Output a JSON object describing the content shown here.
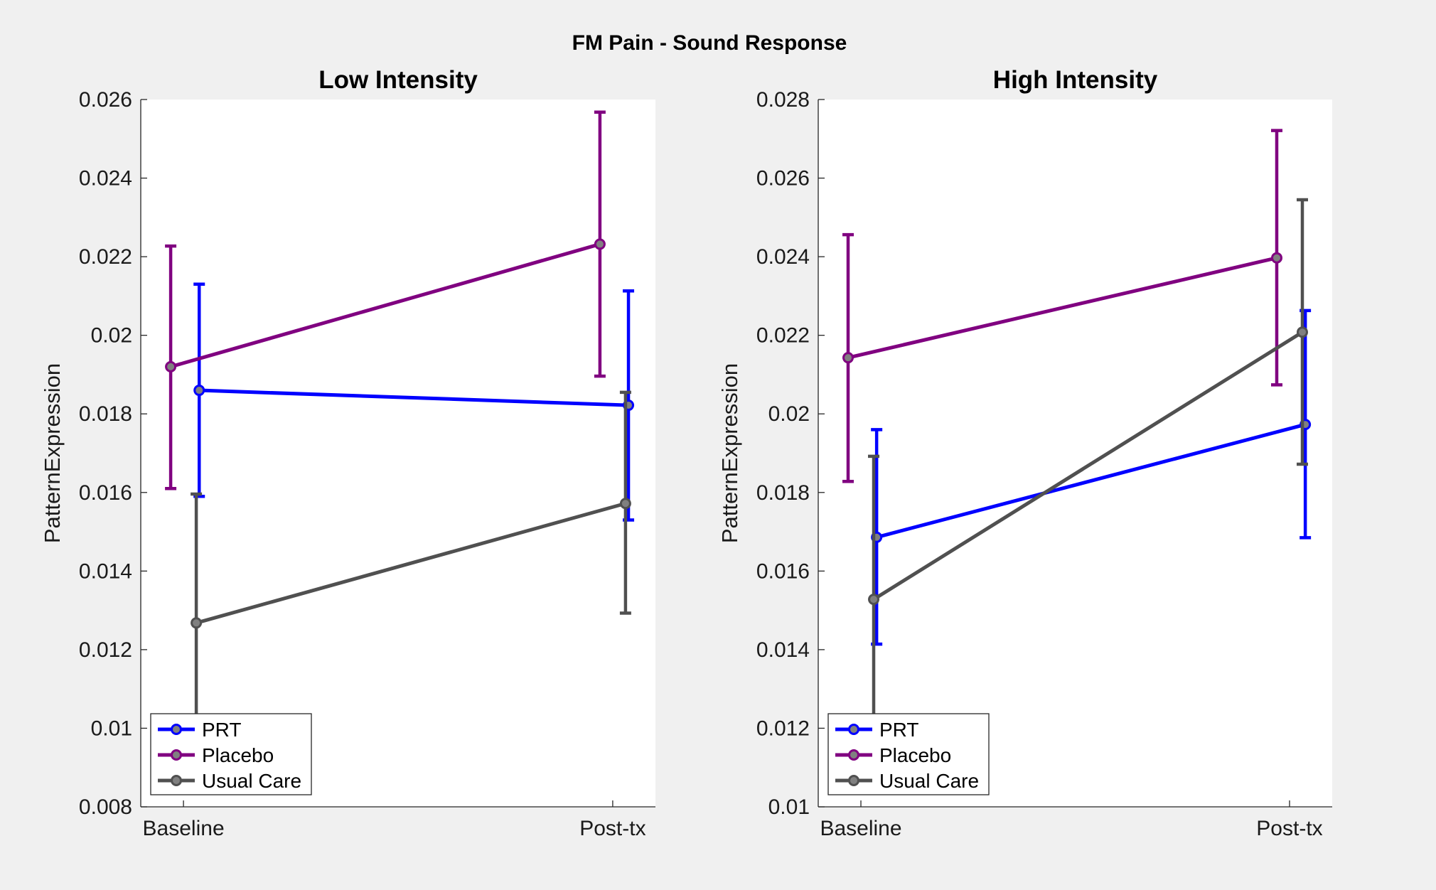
{
  "figure_title": "FM Pain - Sound Response",
  "chart_data": [
    {
      "type": "line",
      "title": "Low Intensity",
      "xlabel": "",
      "ylabel": "PatternExpression",
      "categories": [
        "Baseline",
        "Post-tx"
      ],
      "ylim": [
        0.008,
        0.026
      ],
      "yticks": [
        0.008,
        0.01,
        0.012,
        0.014,
        0.016,
        0.018,
        0.02,
        0.022,
        0.024,
        0.026
      ],
      "ytick_labels": [
        "0.008",
        "0.01",
        "0.012",
        "0.014",
        "0.016",
        "0.018",
        "0.02",
        "0.022",
        "0.024",
        "0.026"
      ],
      "grid": false,
      "legend_position": "bottom-left",
      "series": [
        {
          "name": "PRT",
          "color": "#0000ff",
          "values": [
            0.0186,
            0.01822
          ],
          "lower": [
            0.0159,
            0.0153
          ],
          "upper": [
            0.0213,
            0.02113
          ]
        },
        {
          "name": "Placebo",
          "color": "#800080",
          "values": [
            0.0192,
            0.02232
          ],
          "lower": [
            0.0161,
            0.01896
          ],
          "upper": [
            0.02227,
            0.02568
          ]
        },
        {
          "name": "Usual Care",
          "color": "#505050",
          "values": [
            0.01268,
            0.01572
          ],
          "lower": [
            0.00962,
            0.01293
          ],
          "upper": [
            0.01596,
            0.01855
          ]
        }
      ]
    },
    {
      "type": "line",
      "title": "High Intensity",
      "xlabel": "",
      "ylabel": "PatternExpression",
      "categories": [
        "Baseline",
        "Post-tx"
      ],
      "ylim": [
        0.01,
        0.028
      ],
      "yticks": [
        0.01,
        0.012,
        0.014,
        0.016,
        0.018,
        0.02,
        0.022,
        0.024,
        0.026,
        0.028
      ],
      "ytick_labels": [
        "0.01",
        "0.012",
        "0.014",
        "0.016",
        "0.018",
        "0.02",
        "0.022",
        "0.024",
        "0.026",
        "0.028"
      ],
      "grid": false,
      "legend_position": "bottom-left",
      "series": [
        {
          "name": "PRT",
          "color": "#0000ff",
          "values": [
            0.01686,
            0.01973
          ],
          "lower": [
            0.01414,
            0.01685
          ],
          "upper": [
            0.0196,
            0.02263
          ]
        },
        {
          "name": "Placebo",
          "color": "#800080",
          "values": [
            0.02143,
            0.02397
          ],
          "lower": [
            0.01828,
            0.02074
          ],
          "upper": [
            0.02456,
            0.02721
          ]
        },
        {
          "name": "Usual Care",
          "color": "#505050",
          "values": [
            0.01528,
            0.02208
          ],
          "lower": [
            0.01187,
            0.01872
          ],
          "upper": [
            0.01892,
            0.02545
          ]
        }
      ]
    }
  ]
}
